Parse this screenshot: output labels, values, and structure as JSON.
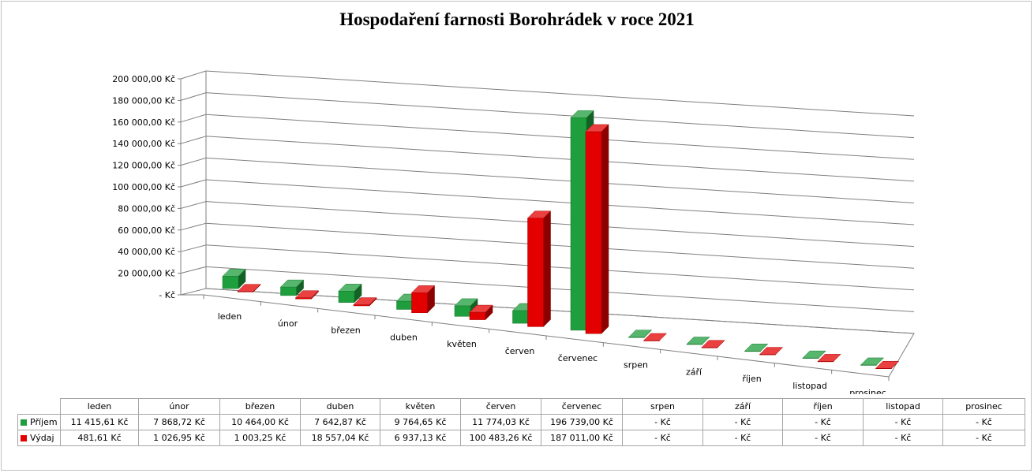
{
  "chart_data": {
    "type": "bar",
    "title": "Hospodaření farnosti Borohrádek v roce 2021",
    "categories": [
      "leden",
      "únor",
      "březen",
      "duben",
      "květen",
      "červen",
      "červenec",
      "srpen",
      "září",
      "říjen",
      "listopad",
      "prosinec"
    ],
    "series": [
      {
        "name": "Příjem",
        "color": "#1e9e3c",
        "values": [
          11415.61,
          7868.72,
          10464.0,
          7642.87,
          9764.65,
          11774.03,
          196739.0,
          0,
          0,
          0,
          0,
          0
        ],
        "labels": [
          "11 415,61 Kč",
          "7 868,72 Kč",
          "10 464,00 Kč",
          "7 642,87 Kč",
          "9 764,65 Kč",
          "11 774,03 Kč",
          "196 739,00 Kč",
          "-   Kč",
          "-   Kč",
          "-   Kč",
          "-   Kč",
          "-   Kč"
        ]
      },
      {
        "name": "Výdaj",
        "color": "#e30000",
        "values": [
          481.61,
          1026.95,
          1003.25,
          18557.04,
          6937.13,
          100483.26,
          187011.0,
          0,
          0,
          0,
          0,
          0
        ],
        "labels": [
          "481,61 Kč",
          "1 026,95 Kč",
          "1 003,25 Kč",
          "18 557,04 Kč",
          "6 937,13 Kč",
          "100 483,26 Kč",
          "187 011,00 Kč",
          "-   Kč",
          "-   Kč",
          "-   Kč",
          "-   Kč",
          "-   Kč"
        ]
      }
    ],
    "ylim": [
      0,
      200000
    ],
    "yticks": [
      0,
      20000,
      40000,
      60000,
      80000,
      100000,
      120000,
      140000,
      160000,
      180000,
      200000
    ],
    "ytick_labels": [
      "-   Kč",
      "20 000,00 Kč",
      "40 000,00 Kč",
      "60 000,00 Kč",
      "80 000,00 Kč",
      "100 000,00 Kč",
      "120 000,00 Kč",
      "140 000,00 Kč",
      "160 000,00 Kč",
      "180 000,00 Kč",
      "200 000,00 Kč"
    ],
    "grid": true,
    "legend": "data-table"
  }
}
